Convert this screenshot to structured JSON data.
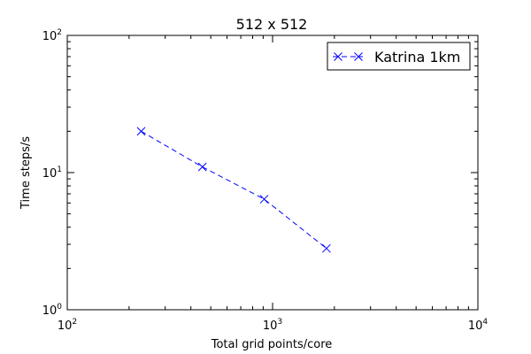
{
  "chart_data": {
    "type": "line",
    "title": "512 x 512",
    "xlabel": "Total grid points/core",
    "ylabel": "Time steps/s",
    "xscale": "log",
    "yscale": "log",
    "xlim": [
      100,
      10000
    ],
    "ylim": [
      1,
      100
    ],
    "x_major_ticks": [
      100,
      1000,
      10000
    ],
    "y_major_ticks": [
      1,
      10,
      100
    ],
    "x_tick_labels": [
      "10^2",
      "10^3",
      "10^4"
    ],
    "y_tick_labels": [
      "10^0",
      "10^1",
      "10^2"
    ],
    "grid": false,
    "legend": {
      "position": "top-right",
      "entries": [
        "Katrina 1km"
      ]
    },
    "series": [
      {
        "name": "Katrina 1km",
        "color": "#0000ff",
        "line_style": "dashed",
        "marker": "x",
        "x": [
          229,
          455,
          910,
          1830
        ],
        "y": [
          20,
          11,
          6.4,
          2.8
        ]
      }
    ]
  }
}
